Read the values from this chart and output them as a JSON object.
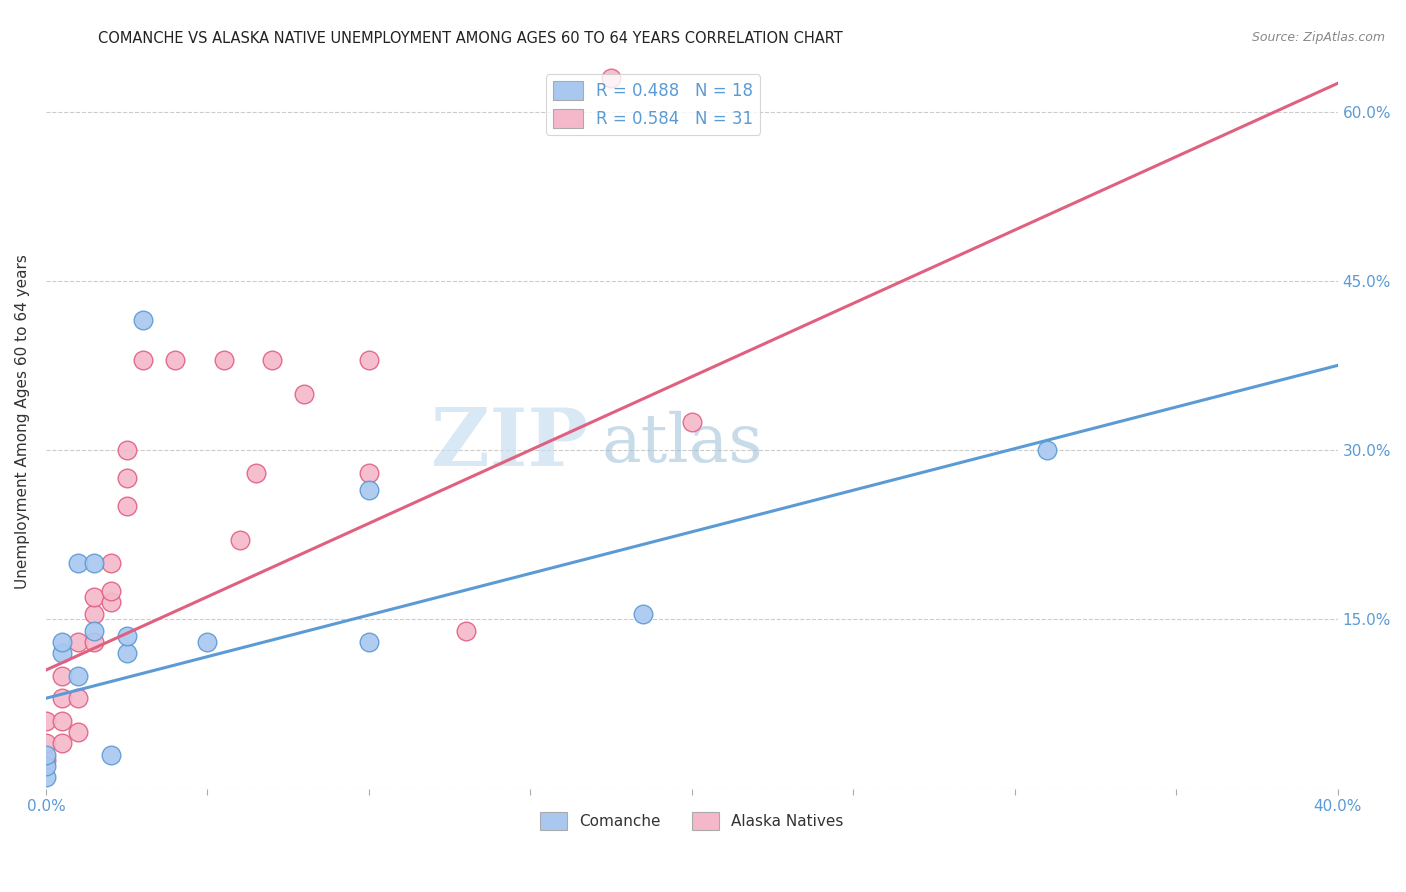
{
  "title": "COMANCHE VS ALASKA NATIVE UNEMPLOYMENT AMONG AGES 60 TO 64 YEARS CORRELATION CHART",
  "source": "Source: ZipAtlas.com",
  "ylabel": "Unemployment Among Ages 60 to 64 years",
  "xlim": [
    0,
    0.4
  ],
  "ylim": [
    0,
    0.65
  ],
  "comanche_color": "#a8c8f0",
  "alaska_color": "#f5b8cb",
  "comanche_line_color": "#5b9bd5",
  "alaska_line_color": "#e06080",
  "comanche_R": 0.488,
  "comanche_N": 18,
  "alaska_R": 0.584,
  "alaska_N": 31,
  "watermark_zip": "ZIP",
  "watermark_atlas": "atlas",
  "comanche_x": [
    0.0,
    0.0,
    0.0,
    0.005,
    0.005,
    0.01,
    0.01,
    0.015,
    0.015,
    0.02,
    0.025,
    0.025,
    0.03,
    0.05,
    0.1,
    0.1,
    0.185,
    0.31
  ],
  "comanche_y": [
    0.01,
    0.02,
    0.03,
    0.12,
    0.13,
    0.1,
    0.2,
    0.14,
    0.2,
    0.03,
    0.12,
    0.135,
    0.415,
    0.13,
    0.265,
    0.13,
    0.155,
    0.3
  ],
  "alaska_x": [
    0.0,
    0.0,
    0.0,
    0.005,
    0.005,
    0.005,
    0.005,
    0.01,
    0.01,
    0.01,
    0.015,
    0.015,
    0.015,
    0.02,
    0.02,
    0.02,
    0.025,
    0.025,
    0.025,
    0.03,
    0.04,
    0.055,
    0.06,
    0.065,
    0.07,
    0.08,
    0.1,
    0.1,
    0.13,
    0.175,
    0.2
  ],
  "alaska_y": [
    0.025,
    0.04,
    0.06,
    0.04,
    0.06,
    0.08,
    0.1,
    0.05,
    0.08,
    0.13,
    0.13,
    0.155,
    0.17,
    0.165,
    0.175,
    0.2,
    0.25,
    0.275,
    0.3,
    0.38,
    0.38,
    0.38,
    0.22,
    0.28,
    0.38,
    0.35,
    0.28,
    0.38,
    0.14,
    0.63,
    0.325
  ],
  "blue_line_x": [
    0.0,
    0.4
  ],
  "blue_line_y": [
    0.08,
    0.375
  ],
  "pink_line_x": [
    0.0,
    0.4
  ],
  "pink_line_y": [
    0.105,
    0.625
  ]
}
